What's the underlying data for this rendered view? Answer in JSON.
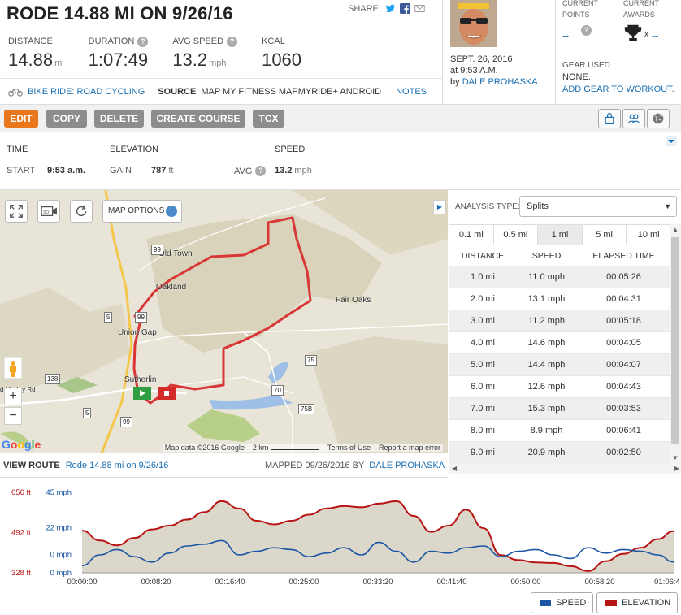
{
  "header": {
    "title": "RODE 14.88 MI ON 9/26/16",
    "share_label": "SHARE:",
    "stats": [
      {
        "label": "DISTANCE",
        "value": "14.88",
        "unit": "mi",
        "help": false
      },
      {
        "label": "DURATION",
        "value": "1:07:49",
        "unit": "",
        "help": true
      },
      {
        "label": "AVG SPEED",
        "value": "13.2",
        "unit": "mph",
        "help": true
      },
      {
        "label": "KCAL",
        "value": "1060",
        "unit": "",
        "help": false
      }
    ],
    "activity": "BIKE RIDE: ROAD CYCLING",
    "source_label": "SOURCE",
    "source_value": "MAP MY FITNESS MAPMYRIDE+ ANDROID",
    "notes": "NOTES"
  },
  "profile": {
    "date": "SEPT. 26, 2016",
    "time": "at 9:53 A.M.",
    "by": "by",
    "user": "DALE PROHASKA"
  },
  "awards": {
    "points_label": "CURRENT POINTS",
    "points_value": "--",
    "awards_label": "CURRENT AWARDS",
    "awards_x": "x",
    "awards_value": "--",
    "gear_label": "GEAR USED",
    "gear_value": "NONE.",
    "gear_add": "ADD GEAR TO WORKOUT."
  },
  "toolbar": {
    "edit": "EDIT",
    "copy": "COPY",
    "delete": "DELETE",
    "create_course": "CREATE COURSE",
    "tcx": "TCX"
  },
  "summary": {
    "time_h": "TIME",
    "start_k": "START",
    "start_v": "9:53 a.m.",
    "elev_h": "ELEVATION",
    "gain_k": "GAIN",
    "gain_v": "787",
    "gain_u": "ft",
    "speed_h": "SPEED",
    "avg_k": "AVG",
    "avg_v": "13.2",
    "avg_u": "mph"
  },
  "map": {
    "options": "MAP OPTIONS",
    "towns": [
      "Old Town",
      "Oakland",
      "Union Gap",
      "Sutherlin",
      "Fair Oaks",
      "d McKay Rd"
    ],
    "shields": [
      "99",
      "99",
      "5",
      "138",
      "5",
      "99",
      "70",
      "75",
      "75B"
    ],
    "footer": {
      "data": "Map data ©2016 Google",
      "scale": "2 km",
      "terms": "Terms of Use",
      "report": "Report a map error"
    },
    "google": "Google"
  },
  "view_route": {
    "label": "VIEW ROUTE",
    "route": "Rode 14.88 mi on 9/26/16",
    "mapped": "MAPPED 09/26/2016 BY",
    "mapped_by": "DALE PROHASKA"
  },
  "analysis": {
    "type_label": "ANALYSIS TYPE:",
    "type_value": "Splits",
    "tabs": [
      "0.1 mi",
      "0.5 mi",
      "1 mi",
      "5 mi",
      "10 mi"
    ],
    "active_tab": 2,
    "columns": [
      "DISTANCE",
      "SPEED",
      "ELAPSED TIME"
    ],
    "rows": [
      [
        "1.0 mi",
        "11.0 mph",
        "00:05:26"
      ],
      [
        "2.0 mi",
        "13.1 mph",
        "00:04:31"
      ],
      [
        "3.0 mi",
        "11.2 mph",
        "00:05:18"
      ],
      [
        "4.0 mi",
        "14.6 mph",
        "00:04:05"
      ],
      [
        "5.0 mi",
        "14.4 mph",
        "00:04:07"
      ],
      [
        "6.0 mi",
        "12.6 mph",
        "00:04:43"
      ],
      [
        "7.0 mi",
        "15.3 mph",
        "00:03:53"
      ],
      [
        "8.0 mi",
        "8.9 mph",
        "00:06:41"
      ],
      [
        "9.0 mi",
        "20.9 mph",
        "00:02:50"
      ]
    ]
  },
  "chart_data": {
    "type": "line",
    "elev_axis_labels": [
      "656 ft",
      "492 ft",
      "328 ft"
    ],
    "speed_axis_labels": [
      "45 mph",
      "22 mph",
      "0 mph",
      "0 mph"
    ],
    "x_tick_labels": [
      "00:00:00",
      "00:08:20",
      "00:16:40",
      "00:25:00",
      "00:33:20",
      "00:41:40",
      "00:50:00",
      "00:58:20",
      "01:06:4"
    ],
    "x_minutes": [
      0,
      2,
      4,
      6,
      8,
      10,
      12,
      14,
      16,
      18,
      20,
      22,
      24,
      26,
      28,
      30,
      32,
      34,
      36,
      38,
      40,
      42,
      44,
      46,
      48,
      50,
      52,
      54,
      56,
      58,
      60,
      62,
      64,
      66,
      67.8
    ],
    "elevation_ft": [
      500,
      460,
      440,
      470,
      505,
      520,
      545,
      575,
      620,
      590,
      540,
      525,
      540,
      565,
      590,
      600,
      595,
      610,
      620,
      560,
      495,
      520,
      585,
      510,
      400,
      380,
      370,
      368,
      355,
      335,
      375,
      405,
      430,
      465,
      498
    ],
    "speed_mph": [
      4,
      10,
      13,
      9,
      6,
      11,
      15,
      16,
      18,
      10,
      12,
      14,
      13,
      9,
      11,
      14,
      10,
      17,
      12,
      6,
      12,
      11,
      14,
      15,
      9,
      12,
      13,
      10,
      8,
      14,
      11,
      13,
      12,
      10,
      6
    ],
    "series": [
      {
        "name": "SPEED",
        "color": "#1b55a3"
      },
      {
        "name": "ELEVATION",
        "color": "#b81414"
      }
    ],
    "xlim": [
      0,
      67.8
    ],
    "elev_ylim": [
      328,
      656
    ],
    "speed_ylim": [
      0,
      45
    ],
    "grid": false,
    "legend": "bottom-right"
  },
  "colors": {
    "accent": "#e8771e",
    "link": "#1a6fb2",
    "route": "#d93636"
  }
}
